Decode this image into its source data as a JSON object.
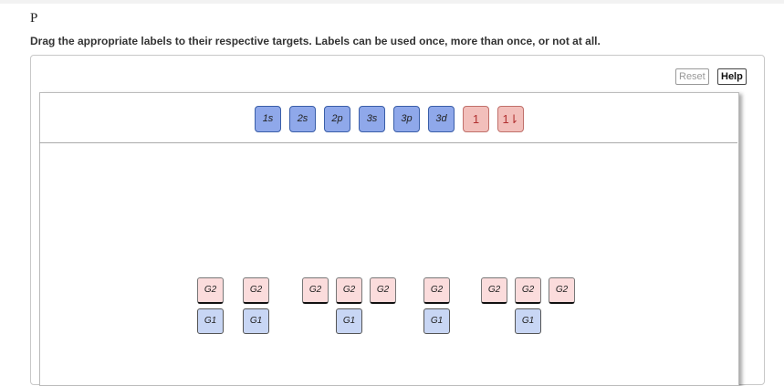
{
  "title": "P",
  "instructions": "Drag the appropriate labels to their respective targets. Labels can be used once, more than once, or not at all.",
  "buttons": {
    "reset": "Reset",
    "help": "Help"
  },
  "labels": [
    "1s",
    "2s",
    "2p",
    "3s",
    "3p",
    "3d",
    "1",
    "1⇂"
  ],
  "targets": {
    "top": [
      "G2",
      "G2",
      "G2",
      "G2",
      "G2",
      "G2",
      "G2",
      "G2",
      "G2"
    ],
    "bottom": [
      "G1",
      "G1",
      "G1",
      "G1",
      "G1"
    ]
  },
  "colors": {
    "orbital_label": "#8fa8ea",
    "arrow_label": "#f2bfbb",
    "g2_target": "#fbdcdc",
    "g1_target": "#c8d6f4"
  }
}
